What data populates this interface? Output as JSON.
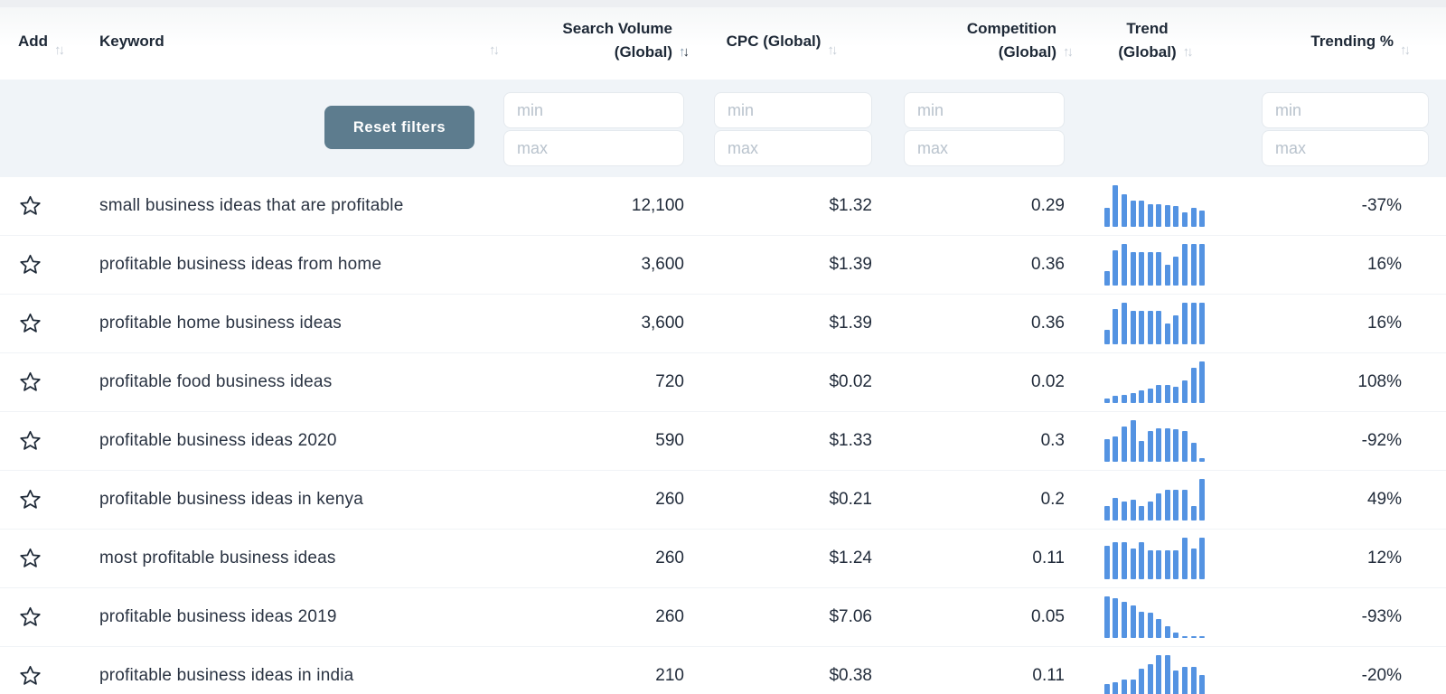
{
  "header": {
    "columns": {
      "add": {
        "label": "Add"
      },
      "keyword": {
        "label": "Keyword"
      },
      "search_volume": {
        "line1": "Search Volume",
        "line2": "(Global)"
      },
      "cpc": {
        "label": "CPC (Global)"
      },
      "competition": {
        "line1": "Competition",
        "line2": "(Global)"
      },
      "trend": {
        "line1": "Trend",
        "line2": "(Global)"
      },
      "trending": {
        "label": "Trending %"
      }
    },
    "sorted_by": "search_volume",
    "sort_direction": "desc"
  },
  "filters": {
    "reset_label": "Reset filters",
    "min_placeholder": "min",
    "max_placeholder": "max",
    "values": {
      "search_volume_min": "",
      "search_volume_max": "",
      "cpc_min": "",
      "cpc_max": "",
      "competition_min": "",
      "competition_max": "",
      "trending_min": "",
      "trending_max": ""
    }
  },
  "icons": {
    "sort_up": "↑",
    "sort_down": "↓",
    "favorite": "star-outline"
  },
  "colors": {
    "trend_bar": "#5493e2",
    "button_bg": "#5d7c8e",
    "header_text": "#1d2836"
  },
  "chart_data": {
    "type": "table",
    "columns": [
      "Add",
      "Keyword",
      "Search Volume (Global)",
      "CPC (Global)",
      "Competition (Global)",
      "Trend (Global)",
      "Trending %"
    ]
  },
  "rows": [
    {
      "keyword": "small business ideas that are profitable",
      "search_volume": "12,100",
      "cpc": "$1.32",
      "competition": "0.29",
      "trending": "-37%",
      "trend_bars": [
        45,
        100,
        78,
        62,
        62,
        55,
        55,
        52,
        50,
        35,
        45,
        40
      ]
    },
    {
      "keyword": "profitable business ideas from home",
      "search_volume": "3,600",
      "cpc": "$1.39",
      "competition": "0.36",
      "trending": "16%",
      "trend_bars": [
        35,
        85,
        100,
        80,
        80,
        80,
        80,
        50,
        70,
        100,
        100,
        100
      ]
    },
    {
      "keyword": "profitable home business ideas",
      "search_volume": "3,600",
      "cpc": "$1.39",
      "competition": "0.36",
      "trending": "16%",
      "trend_bars": [
        35,
        85,
        100,
        80,
        80,
        80,
        80,
        50,
        70,
        100,
        100,
        100
      ]
    },
    {
      "keyword": "profitable food business ideas",
      "search_volume": "720",
      "cpc": "$0.02",
      "competition": "0.02",
      "trending": "108%",
      "trend_bars": [
        10,
        17,
        20,
        25,
        30,
        34,
        44,
        44,
        40,
        55,
        85,
        100
      ]
    },
    {
      "keyword": "profitable business ideas 2020",
      "search_volume": "590",
      "cpc": "$1.33",
      "competition": "0.3",
      "trending": "-92%",
      "trend_bars": [
        55,
        60,
        85,
        100,
        50,
        75,
        80,
        80,
        78,
        75,
        45,
        8
      ]
    },
    {
      "keyword": "profitable business ideas in kenya",
      "search_volume": "260",
      "cpc": "$0.21",
      "competition": "0.2",
      "trending": "49%",
      "trend_bars": [
        35,
        55,
        45,
        50,
        35,
        45,
        65,
        75,
        75,
        75,
        35,
        100
      ]
    },
    {
      "keyword": "most profitable business ideas",
      "search_volume": "260",
      "cpc": "$1.24",
      "competition": "0.11",
      "trending": "12%",
      "trend_bars": [
        80,
        90,
        90,
        75,
        90,
        70,
        70,
        70,
        70,
        100,
        75,
        100
      ]
    },
    {
      "keyword": "profitable business ideas 2019",
      "search_volume": "260",
      "cpc": "$7.06",
      "competition": "0.05",
      "trending": "-93%",
      "trend_bars": [
        100,
        95,
        88,
        78,
        62,
        60,
        45,
        28,
        12,
        5,
        5,
        5
      ]
    },
    {
      "keyword": "profitable business ideas in india",
      "search_volume": "210",
      "cpc": "$0.38",
      "competition": "0.11",
      "trending": "-20%",
      "trend_bars": [
        30,
        35,
        42,
        42,
        68,
        78,
        100,
        100,
        62,
        72,
        72,
        52
      ]
    }
  ]
}
